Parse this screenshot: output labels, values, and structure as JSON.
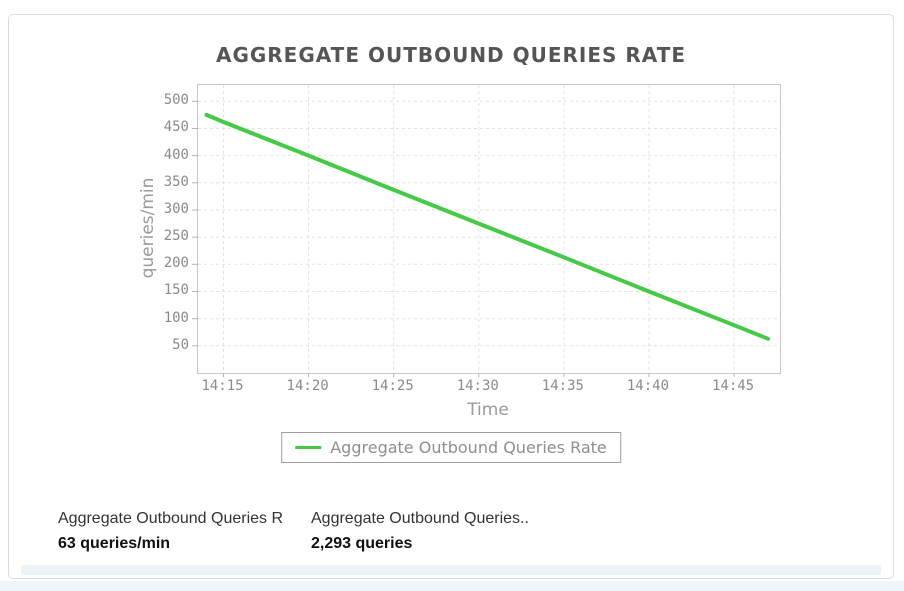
{
  "chart_data": {
    "type": "line",
    "title": "AGGREGATE OUTBOUND QUERIES RATE",
    "xlabel": "Time",
    "ylabel": "queries/min",
    "grid": true,
    "legend_position": "bottom",
    "series": [
      {
        "name": "Aggregate Outbound Queries Rate",
        "color": "#46c946",
        "x_labels": [
          "14:14",
          "14:15",
          "14:20",
          "14:25",
          "14:30",
          "14:35",
          "14:40",
          "14:45",
          "14:47"
        ],
        "x_minutes": [
          14,
          15,
          20,
          25,
          30,
          35,
          40,
          45,
          47
        ],
        "values": [
          475,
          462,
          400,
          337,
          275,
          213,
          150,
          88,
          63
        ]
      }
    ],
    "xticks": {
      "minutes": [
        15,
        20,
        25,
        30,
        35,
        40,
        45
      ],
      "labels": [
        "14:15",
        "14:20",
        "14:25",
        "14:30",
        "14:35",
        "14:40",
        "14:45"
      ]
    },
    "yticks": [
      50,
      100,
      150,
      200,
      250,
      300,
      350,
      400,
      450,
      500
    ],
    "xlim_minutes": [
      13.5,
      47.7
    ],
    "ylim": [
      0,
      530
    ]
  },
  "stats": [
    {
      "label": "Aggregate Outbound Queries R",
      "value": "63 queries/min"
    },
    {
      "label": "Aggregate Outbound Queries..",
      "value": "2,293 queries"
    }
  ],
  "colors": {
    "title": "#555555",
    "axis_text": "#8a8a8a",
    "grid": "#e2e2e2",
    "plot_border": "#c8c8c8",
    "card_border": "#dcdcdc",
    "legend_border": "#9e9e9e",
    "legend_text": "#8f8f8f",
    "series_green": "#46c946",
    "stat_label": "#333333",
    "stat_value": "#111111"
  }
}
